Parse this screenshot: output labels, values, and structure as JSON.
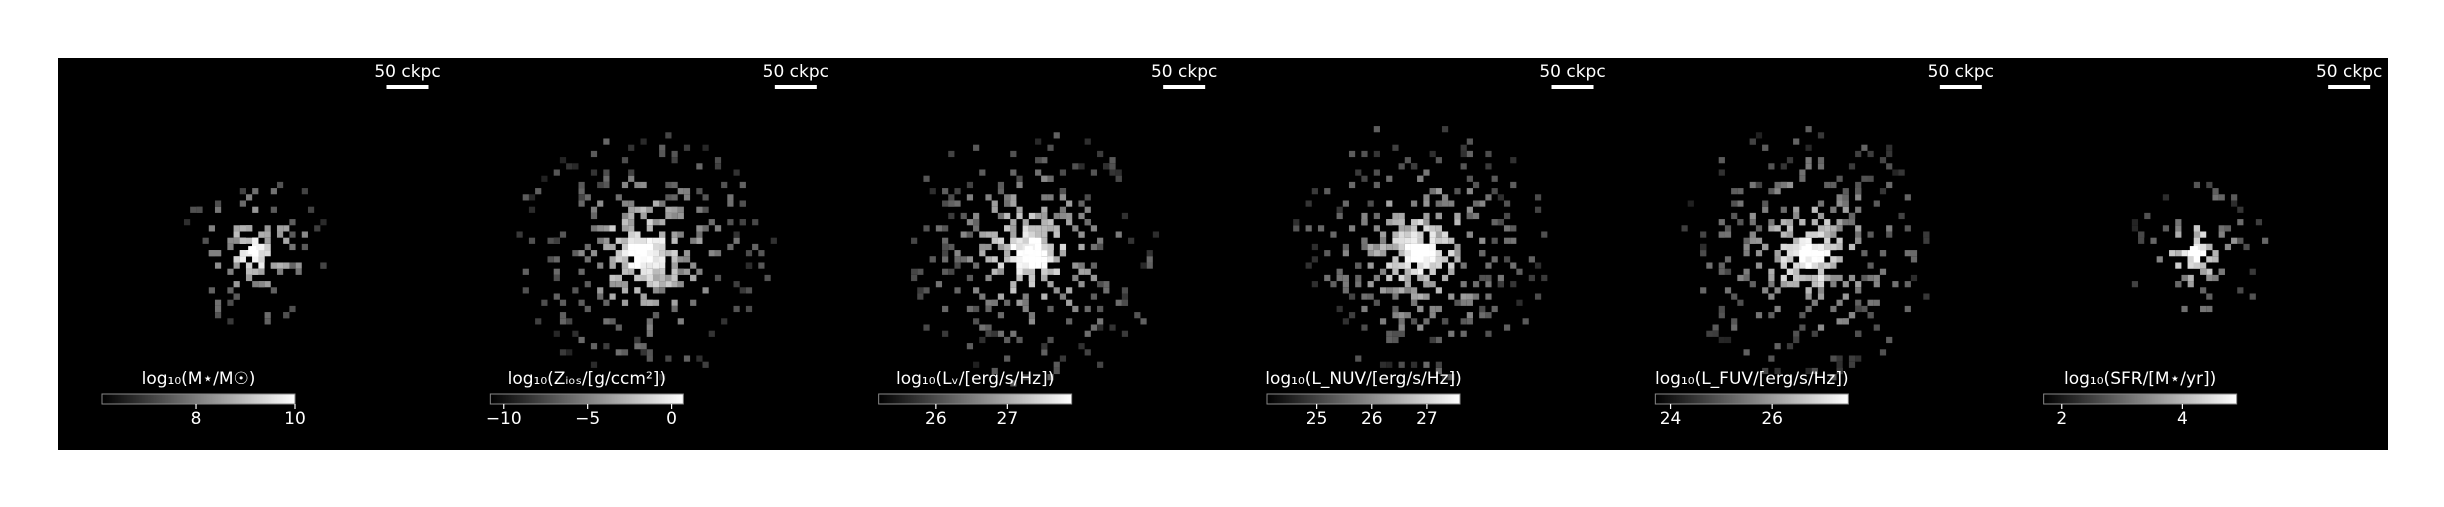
{
  "panels": [
    {
      "scalebar": "50 ckpc",
      "colorbar": {
        "label": "log₁₀(M⋆/M☉)",
        "lim": [
          6.1,
          10
        ],
        "ticks": [
          8,
          10
        ]
      }
    },
    {
      "scalebar": "50 ckpc",
      "colorbar": {
        "label": "log₁₀(Zᵢₒₛ/[g/ccm²])",
        "lim": [
          -10.8,
          0.7
        ],
        "ticks": [
          {
            "value": -10,
            "label": "−10"
          },
          {
            "value": -5,
            "label": "−5"
          },
          0
        ]
      }
    },
    {
      "scalebar": "50 ckpc",
      "colorbar": {
        "label": "log₁₀(Lᵥ/[erg/s/Hz])",
        "lim": [
          25.2,
          27.9
        ],
        "ticks": [
          26,
          27
        ]
      }
    },
    {
      "scalebar": "50 ckpc",
      "colorbar": {
        "label": "log₁₀(L_NUV/[erg/s/Hz])",
        "lim": [
          24.1,
          27.6
        ],
        "ticks": [
          25,
          26,
          27
        ]
      }
    },
    {
      "scalebar": "50 ckpc",
      "colorbar": {
        "label": "log₁₀(L_FUV/[erg/s/Hz])",
        "lim": [
          23.7,
          27.5
        ],
        "ticks": [
          24,
          26
        ]
      }
    },
    {
      "scalebar": "50 ckpc",
      "colorbar": {
        "label": "log₁₀(SFR/[M⋆/yr])",
        "lim": [
          1.7,
          4.9
        ],
        "ticks": [
          2,
          4
        ]
      }
    }
  ]
}
